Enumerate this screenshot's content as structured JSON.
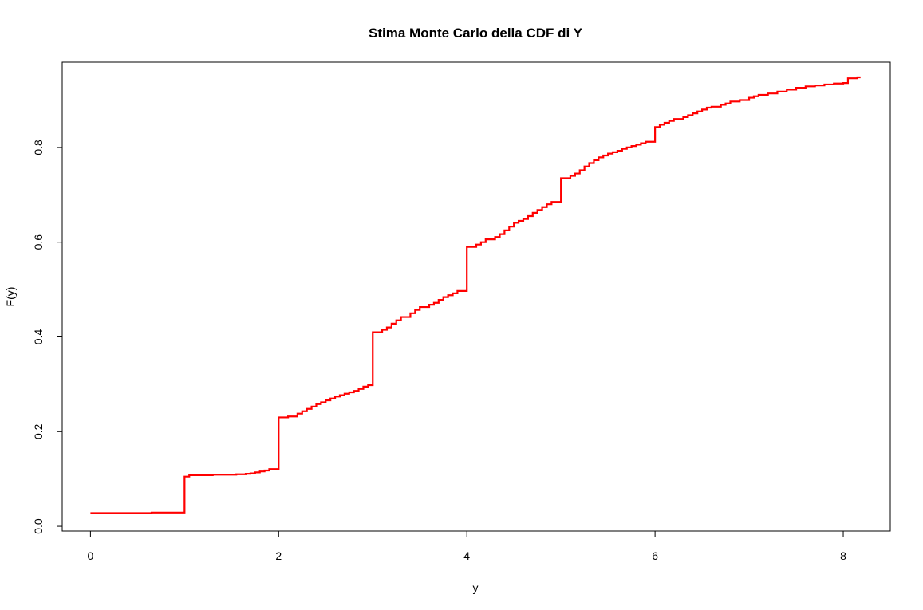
{
  "chart_data": {
    "type": "line",
    "step": true,
    "title": "Stima Monte Carlo della CDF di Y",
    "xlabel": "y",
    "ylabel": "F(y)",
    "xlim": [
      -0.3,
      8.5
    ],
    "ylim": [
      -0.01,
      0.98
    ],
    "x_ticks": [
      0,
      2,
      4,
      6,
      8
    ],
    "x_tick_labels": [
      "0",
      "2",
      "4",
      "6",
      "8"
    ],
    "y_ticks": [
      0.0,
      0.2,
      0.4,
      0.6,
      0.8
    ],
    "y_tick_labels": [
      "0.0",
      "0.2",
      "0.4",
      "0.6",
      "0.8"
    ],
    "grid": false,
    "legend": "none",
    "series_color": "#ff0000",
    "series": [
      {
        "x": [
          0,
          0.65,
          1.0,
          1.05,
          1.3,
          1.55,
          1.65,
          1.7,
          1.75,
          1.8,
          1.85,
          1.9,
          2.0,
          2.1,
          2.2,
          2.25,
          2.3,
          2.35,
          2.4,
          2.45,
          2.5,
          2.55,
          2.6,
          2.65,
          2.7,
          2.75,
          2.8,
          2.85,
          2.9,
          2.95,
          3.0,
          3.1,
          3.15,
          3.2,
          3.25,
          3.3,
          3.4,
          3.45,
          3.5,
          3.6,
          3.65,
          3.7,
          3.75,
          3.8,
          3.85,
          3.9,
          4.0,
          4.1,
          4.15,
          4.2,
          4.3,
          4.35,
          4.4,
          4.45,
          4.5,
          4.55,
          4.6,
          4.65,
          4.7,
          4.75,
          4.8,
          4.85,
          4.9,
          5.0,
          5.1,
          5.15,
          5.2,
          5.25,
          5.3,
          5.35,
          5.4,
          5.45,
          5.5,
          5.55,
          5.6,
          5.65,
          5.7,
          5.75,
          5.8,
          5.85,
          5.9,
          6.0,
          6.05,
          6.1,
          6.15,
          6.2,
          6.3,
          6.35,
          6.4,
          6.45,
          6.5,
          6.55,
          6.6,
          6.7,
          6.75,
          6.8,
          6.9,
          7.0,
          7.05,
          7.1,
          7.2,
          7.3,
          7.4,
          7.5,
          7.6,
          7.7,
          7.8,
          7.9,
          8.0,
          8.05,
          8.15
        ],
        "y": [
          0.028,
          0.029,
          0.105,
          0.108,
          0.109,
          0.11,
          0.111,
          0.112,
          0.114,
          0.116,
          0.118,
          0.121,
          0.23,
          0.232,
          0.238,
          0.243,
          0.248,
          0.253,
          0.258,
          0.262,
          0.266,
          0.27,
          0.274,
          0.277,
          0.28,
          0.283,
          0.286,
          0.29,
          0.295,
          0.298,
          0.41,
          0.415,
          0.42,
          0.428,
          0.435,
          0.442,
          0.45,
          0.457,
          0.463,
          0.468,
          0.472,
          0.478,
          0.484,
          0.488,
          0.492,
          0.497,
          0.59,
          0.595,
          0.6,
          0.606,
          0.611,
          0.617,
          0.625,
          0.633,
          0.641,
          0.645,
          0.649,
          0.655,
          0.662,
          0.668,
          0.674,
          0.68,
          0.685,
          0.735,
          0.74,
          0.745,
          0.752,
          0.76,
          0.767,
          0.773,
          0.779,
          0.783,
          0.787,
          0.79,
          0.793,
          0.797,
          0.8,
          0.803,
          0.806,
          0.809,
          0.812,
          0.843,
          0.848,
          0.852,
          0.856,
          0.86,
          0.864,
          0.868,
          0.872,
          0.876,
          0.88,
          0.884,
          0.886,
          0.89,
          0.893,
          0.897,
          0.9,
          0.905,
          0.908,
          0.911,
          0.914,
          0.918,
          0.922,
          0.926,
          0.929,
          0.931,
          0.933,
          0.935,
          0.936,
          0.946,
          0.948
        ]
      }
    ]
  }
}
